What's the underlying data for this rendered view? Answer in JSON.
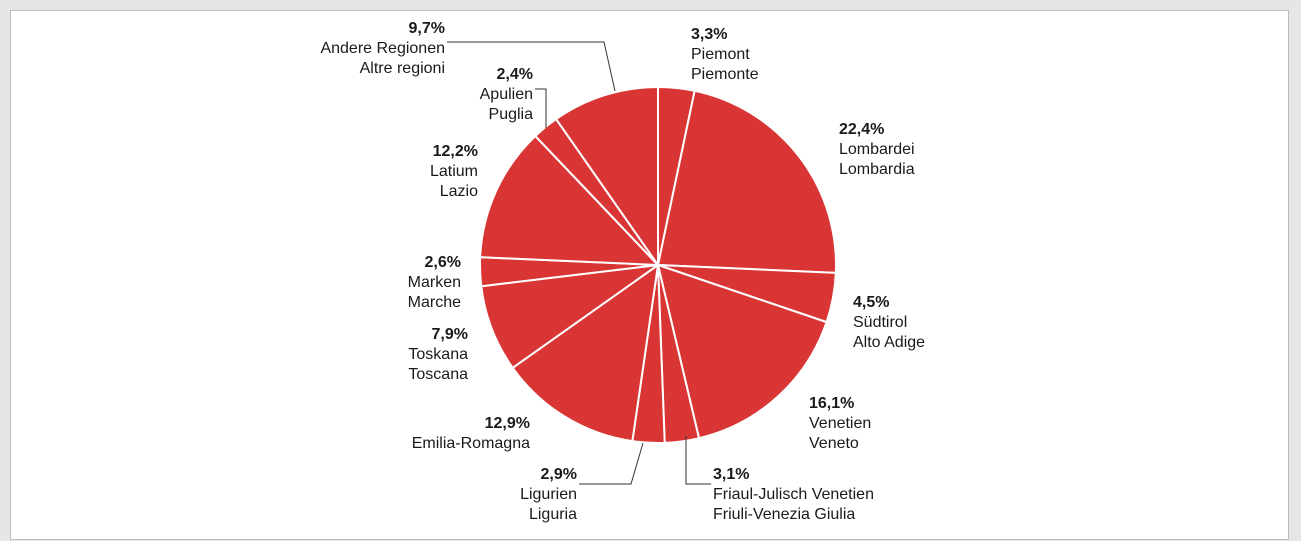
{
  "chart_data": {
    "type": "pie",
    "colors": {
      "slice": "#d93535",
      "separator": "#ffffff",
      "leader": "#333333",
      "text": "#1a1a1a"
    },
    "slices": [
      {
        "id": "piemont",
        "value": 3.3,
        "pct": "3,3%",
        "lines": [
          "Piemont",
          "Piemonte"
        ]
      },
      {
        "id": "lombardei",
        "value": 22.4,
        "pct": "22,4%",
        "lines": [
          "Lombardei",
          "Lombardia"
        ]
      },
      {
        "id": "suedtirol",
        "value": 4.5,
        "pct": "4,5%",
        "lines": [
          "Südtirol",
          "Alto Adige"
        ]
      },
      {
        "id": "venetien",
        "value": 16.1,
        "pct": "16,1%",
        "lines": [
          "Venetien",
          "Veneto"
        ]
      },
      {
        "id": "friaul",
        "value": 3.1,
        "pct": "3,1%",
        "lines": [
          "Friaul-Julisch Venetien",
          "Friuli-Venezia Giulia"
        ]
      },
      {
        "id": "ligurien",
        "value": 2.9,
        "pct": "2,9%",
        "lines": [
          "Ligurien",
          "Liguria"
        ]
      },
      {
        "id": "emilia",
        "value": 12.9,
        "pct": "12,9%",
        "lines": [
          "Emilia-Romagna"
        ]
      },
      {
        "id": "toskana",
        "value": 7.9,
        "pct": "7,9%",
        "lines": [
          "Toskana",
          "Toscana"
        ]
      },
      {
        "id": "marken",
        "value": 2.6,
        "pct": "2,6%",
        "lines": [
          "Marken",
          "Marche"
        ]
      },
      {
        "id": "latium",
        "value": 12.2,
        "pct": "12,2%",
        "lines": [
          "Latium",
          "Lazio"
        ]
      },
      {
        "id": "apulien",
        "value": 2.4,
        "pct": "2,4%",
        "lines": [
          "Apulien",
          "Puglia"
        ]
      },
      {
        "id": "andere",
        "value": 9.7,
        "pct": "9,7%",
        "lines": [
          "Andere Regionen",
          "Altre regioni"
        ]
      }
    ]
  }
}
